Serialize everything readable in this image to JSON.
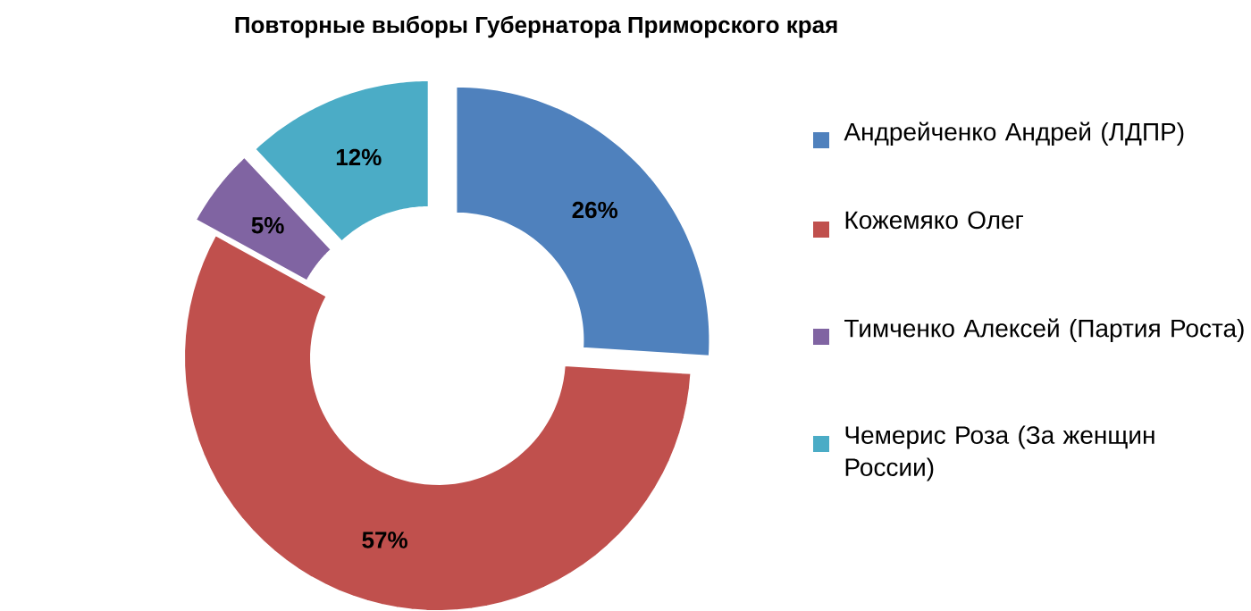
{
  "chart_data": {
    "type": "donut",
    "title": "Повторные выборы Губернатора Приморского края",
    "categories": [
      "Андрейченко Андрей (ЛДПР)",
      "Кожемяко Олег",
      "Тимченко Алексей (Партия Роста)",
      "Чемерис Роза (За женщин России)"
    ],
    "values": [
      26,
      57,
      5,
      12
    ],
    "colors": [
      "#4f81bd",
      "#c0504d",
      "#8064a2",
      "#4bacc6"
    ],
    "value_labels": [
      "26%",
      "57%",
      "5%",
      "12%"
    ],
    "legend": "right"
  }
}
